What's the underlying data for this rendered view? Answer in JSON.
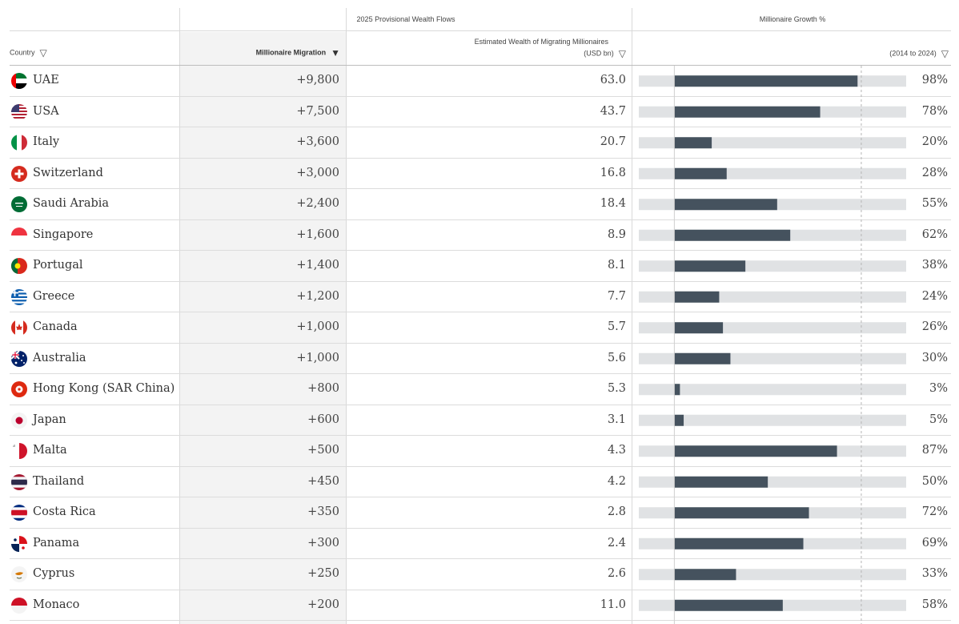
{
  "header": {
    "group_flows": "2025 Provisional Wealth Flows",
    "group_growth": "Millionaire Growth %",
    "col_country": "Country",
    "col_migration": "Millionaire Migration",
    "col_wealth_line1": "Estimated Wealth of Migrating Millionaires",
    "col_wealth_line2": "(USD bn)",
    "col_growth": "(2014 to 2024)"
  },
  "rows": [
    {
      "country": "UAE",
      "migration": "+9,800",
      "wealth": "63.0",
      "growth": "98%"
    },
    {
      "country": "USA",
      "migration": "+7,500",
      "wealth": "43.7",
      "growth": "78%"
    },
    {
      "country": "Italy",
      "migration": "+3,600",
      "wealth": "20.7",
      "growth": "20%"
    },
    {
      "country": "Switzerland",
      "migration": "+3,000",
      "wealth": "16.8",
      "growth": "28%"
    },
    {
      "country": "Saudi Arabia",
      "migration": "+2,400",
      "wealth": "18.4",
      "growth": "55%"
    },
    {
      "country": "Singapore",
      "migration": "+1,600",
      "wealth": "8.9",
      "growth": "62%"
    },
    {
      "country": "Portugal",
      "migration": "+1,400",
      "wealth": "8.1",
      "growth": "38%"
    },
    {
      "country": "Greece",
      "migration": "+1,200",
      "wealth": "7.7",
      "growth": "24%"
    },
    {
      "country": "Canada",
      "migration": "+1,000",
      "wealth": "5.7",
      "growth": "26%"
    },
    {
      "country": "Australia",
      "migration": "+1,000",
      "wealth": "5.6",
      "growth": "30%"
    },
    {
      "country": "Hong Kong (SAR China)",
      "migration": "+800",
      "wealth": "5.3",
      "growth": "3%"
    },
    {
      "country": "Japan",
      "migration": "+600",
      "wealth": "3.1",
      "growth": "5%"
    },
    {
      "country": "Malta",
      "migration": "+500",
      "wealth": "4.3",
      "growth": "87%"
    },
    {
      "country": "Thailand",
      "migration": "+450",
      "wealth": "4.2",
      "growth": "50%"
    },
    {
      "country": "Costa Rica",
      "migration": "+350",
      "wealth": "2.8",
      "growth": "72%"
    },
    {
      "country": "Panama",
      "migration": "+300",
      "wealth": "2.4",
      "growth": "69%"
    },
    {
      "country": "Cyprus",
      "migration": "+250",
      "wealth": "2.6",
      "growth": "33%"
    },
    {
      "country": "Monaco",
      "migration": "+200",
      "wealth": "11.0",
      "growth": "58%"
    }
  ],
  "chart_data": {
    "type": "bar",
    "title": "Millionaire Growth %",
    "xlabel": "(2014 to 2024)",
    "categories": [
      "UAE",
      "USA",
      "Italy",
      "Switzerland",
      "Saudi Arabia",
      "Singapore",
      "Portugal",
      "Greece",
      "Canada",
      "Australia",
      "Hong Kong (SAR China)",
      "Japan",
      "Malta",
      "Thailand",
      "Costa Rica",
      "Panama",
      "Cyprus",
      "Monaco"
    ],
    "values": [
      98,
      78,
      20,
      28,
      55,
      62,
      38,
      24,
      26,
      30,
      3,
      5,
      87,
      50,
      72,
      69,
      33,
      58
    ],
    "xlim": [
      -19,
      124
    ],
    "reference_line": 100,
    "colors": {
      "bar": "#45525e",
      "track": "#e0e2e4",
      "reference": "#b5b5b5"
    }
  },
  "flags": [
    "uae-flag-icon",
    "usa-flag-icon",
    "italy-flag-icon",
    "switzerland-flag-icon",
    "saudi-arabia-flag-icon",
    "singapore-flag-icon",
    "portugal-flag-icon",
    "greece-flag-icon",
    "canada-flag-icon",
    "australia-flag-icon",
    "hong-kong-flag-icon",
    "japan-flag-icon",
    "malta-flag-icon",
    "thailand-flag-icon",
    "costa-rica-flag-icon",
    "panama-flag-icon",
    "cyprus-flag-icon",
    "monaco-flag-icon"
  ]
}
